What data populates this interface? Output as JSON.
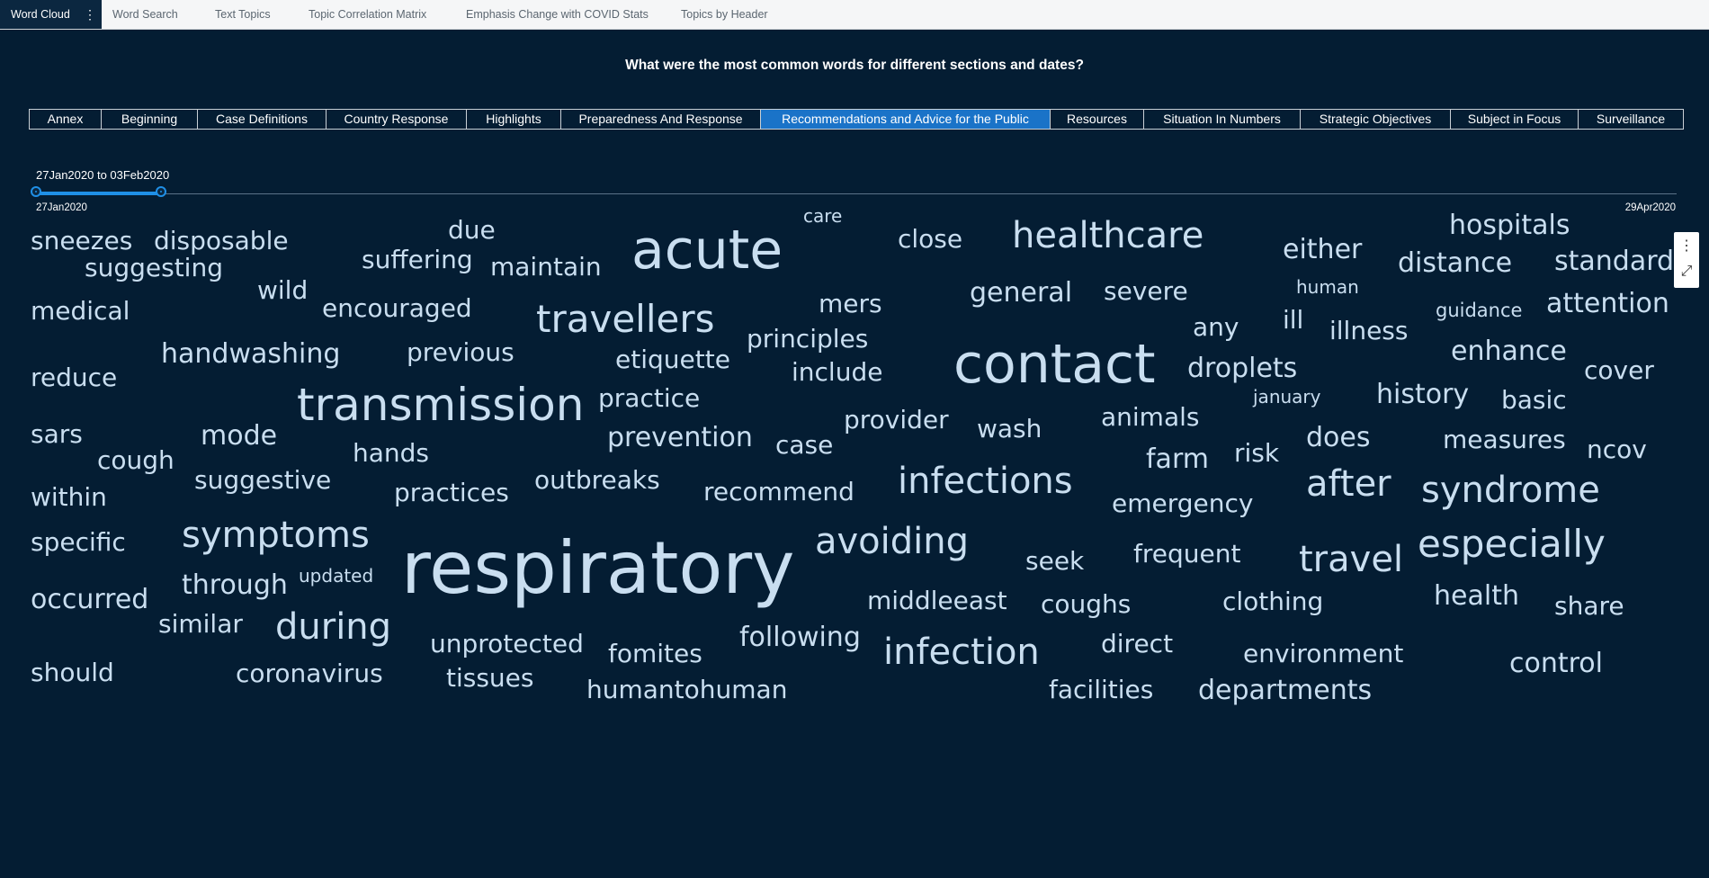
{
  "tabs": [
    {
      "label": "Word Cloud",
      "active": true
    },
    {
      "label": "Word Search"
    },
    {
      "label": "Text Topics"
    },
    {
      "label": "Topic Correlation Matrix"
    },
    {
      "label": "Emphasis Change with COVID Stats"
    },
    {
      "label": "Topics by Header"
    }
  ],
  "tab_menu_icon": "⋮",
  "page_title": "What were the most common words for different sections and dates?",
  "sections": [
    "Annex",
    "Beginning",
    "Case Definitions",
    "Country Response",
    "Highlights",
    "Preparedness And Response",
    "Recommendations and Advice for the Public",
    "Resources",
    "Situation In Numbers",
    "Strategic Objectives",
    "Subject in Focus",
    "Surveillance"
  ],
  "selected_section": "Recommendations and Advice for the Public",
  "date_range": {
    "label": "27Jan2020 to 03Feb2020",
    "min": "27Jan2020",
    "max": "29Apr2020",
    "selected_start_fraction": 0.0,
    "selected_end_fraction": 0.076
  },
  "tools": {
    "menu_icon": "⋮",
    "maximize_icon": "⤢"
  },
  "colors": {
    "background": "#041d33",
    "word": "#c9def0",
    "accent": "#1a73c8"
  },
  "words": [
    "sneezes",
    "disposable",
    "due",
    "care",
    "acute",
    "close",
    "healthcare",
    "hospitals",
    "suggesting",
    "suffering",
    "maintain",
    "either",
    "distance",
    "standard",
    "wild",
    "general",
    "severe",
    "human",
    "medical",
    "encouraged",
    "travellers",
    "mers",
    "guidance",
    "attention",
    "ill",
    "any",
    "illness",
    "handwashing",
    "previous",
    "principles",
    "enhance",
    "etiquette",
    "include",
    "contact",
    "droplets",
    "cover",
    "reduce",
    "january",
    "history",
    "basic",
    "transmission",
    "practice",
    "animals",
    "provider",
    "wash",
    "sars",
    "mode",
    "prevention",
    "case",
    "does",
    "measures",
    "ncov",
    "cough",
    "hands",
    "farm",
    "risk",
    "suggestive",
    "infections",
    "after",
    "syndrome",
    "within",
    "outbreaks",
    "recommend",
    "practices",
    "emergency",
    "symptoms",
    "avoiding",
    "specific",
    "frequent",
    "travel",
    "especially",
    "seek",
    "respiratory",
    "updated",
    "through",
    "middleeast",
    "coughs",
    "clothing",
    "health",
    "occurred",
    "share",
    "similar",
    "during",
    "following",
    "unprotected",
    "fomites",
    "infection",
    "direct",
    "environment",
    "control",
    "should",
    "coronavirus",
    "tissues",
    "humantohuman",
    "facilities",
    "departments"
  ]
}
